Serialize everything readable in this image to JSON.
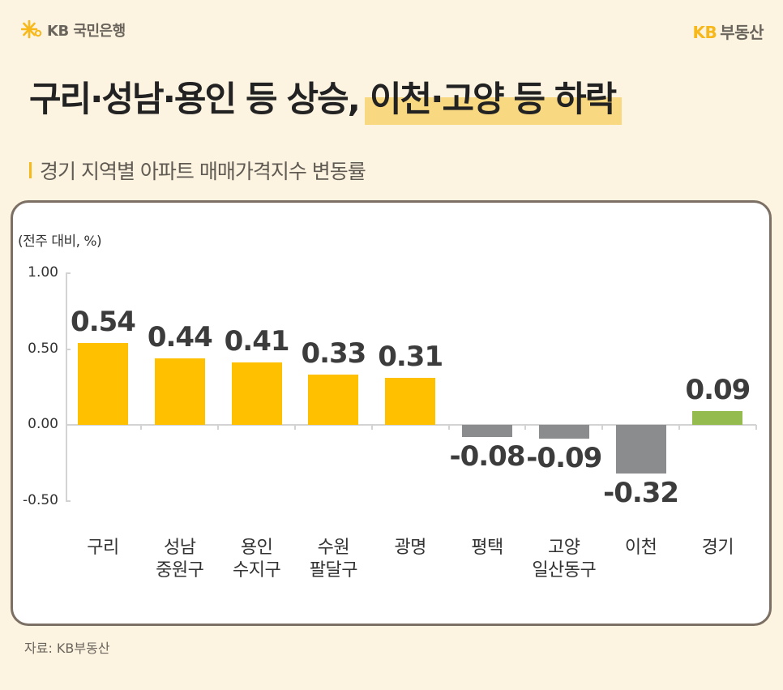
{
  "brand": {
    "bank_logo": "KB 국민은행",
    "bank_icon": "kb-star-icon",
    "realestate_kb": "KB",
    "realestate_name": "부동산"
  },
  "headline": {
    "part1": "구리·성남·용인 등 상승,",
    "part2_highlight": "이천·고양 등 하락"
  },
  "subtitle": "경기 지역별 아파트 매매가격지수 변동률",
  "source": "자료: KB부동산",
  "colors": {
    "rise": "#ffc000",
    "fall": "#8a8c8e",
    "total": "#93bb4e",
    "highlight": "#f8d880",
    "background": "#fdf3e1"
  },
  "chart_data": {
    "type": "bar",
    "title": "경기 지역별 아파트 매매가격지수 변동률",
    "unit_label": "(전주 대비, %)",
    "xlabel": "",
    "ylabel": "(전주 대비, %)",
    "ylim": [
      -0.5,
      1.0
    ],
    "yticks": [
      "1.00",
      "0.50",
      "0.00",
      "-0.50"
    ],
    "grid": false,
    "legend": null,
    "categories": [
      "구리",
      "성남 중원구",
      "용인 수지구",
      "수원 팔달구",
      "광명",
      "평택",
      "고양 일산동구",
      "이천",
      "경기"
    ],
    "category_lines": [
      [
        "구리"
      ],
      [
        "성남",
        "중원구"
      ],
      [
        "용인",
        "수지구"
      ],
      [
        "수원",
        "팔달구"
      ],
      [
        "광명"
      ],
      [
        "평택"
      ],
      [
        "고양",
        "일산동구"
      ],
      [
        "이천"
      ],
      [
        "경기"
      ]
    ],
    "values": [
      0.54,
      0.44,
      0.41,
      0.33,
      0.31,
      -0.08,
      -0.09,
      -0.32,
      0.09
    ],
    "labels": [
      "0.54",
      "0.44",
      "0.41",
      "0.33",
      "0.31",
      "-0.08",
      "-0.09",
      "-0.32",
      "0.09"
    ],
    "bar_colors": [
      "#ffc000",
      "#ffc000",
      "#ffc000",
      "#ffc000",
      "#ffc000",
      "#8a8c8e",
      "#8a8c8e",
      "#8a8c8e",
      "#93bb4e"
    ]
  }
}
